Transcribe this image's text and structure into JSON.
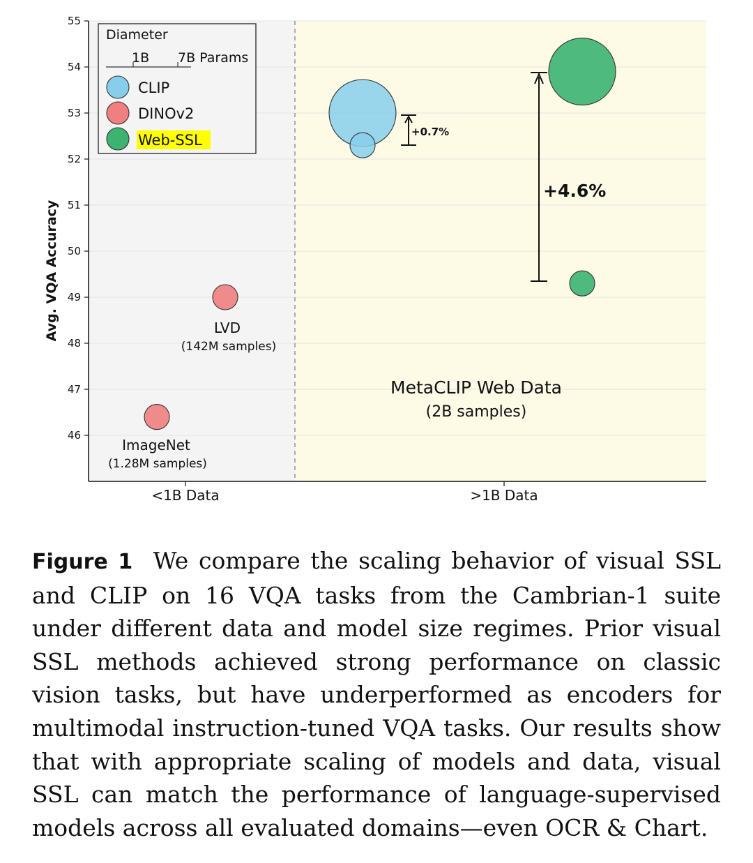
{
  "chart_data": {
    "type": "scatter",
    "ylabel": "Avg. VQA Accuracy",
    "ylim": [
      45,
      55
    ],
    "yticks": [
      "46",
      "47",
      "48",
      "49",
      "50",
      "51",
      "52",
      "53",
      "54",
      "55"
    ],
    "categories": [
      "<1B Data",
      ">1B Data"
    ],
    "grid": true,
    "legend": {
      "placement": "top-left",
      "title": "Diameter",
      "size_small": "1B",
      "size_large": "7B Params",
      "entries": [
        "CLIP",
        "DINOv2",
        "Web-SSL"
      ]
    },
    "series": [
      {
        "name": "CLIP",
        "color": "#87ceeb",
        "points": [
          {
            "region": ">1B Data",
            "params_B": 1,
            "y": 52.3
          },
          {
            "region": ">1B Data",
            "params_B": 7,
            "y": 53.0
          }
        ]
      },
      {
        "name": "DINOv2",
        "color": "#f08080",
        "points": [
          {
            "region": "<1B Data",
            "params_B": 1,
            "y": 46.4
          },
          {
            "region": "<1B Data",
            "params_B": 1,
            "y": 49.0
          }
        ]
      },
      {
        "name": "Web-SSL",
        "color": "#3cb371",
        "points": [
          {
            "region": ">1B Data",
            "params_B": 1,
            "y": 49.3
          },
          {
            "region": ">1B Data",
            "params_B": 7,
            "y": 53.9
          }
        ]
      }
    ],
    "annotations": {
      "clip_gain": "+0.7%",
      "webssl_gain": "+4.6%",
      "imagenet_name": "ImageNet",
      "imagenet_samples": "(1.28M samples)",
      "lvd_name": "LVD",
      "lvd_samples": "(142M samples)",
      "metaclip_name": "MetaCLIP Web Data",
      "metaclip_samples": "(2B samples)"
    },
    "colors": {
      "left_region_bg": "#f4f4f4",
      "right_region_bg": "#fdfbe6",
      "highlight": "#ffff00"
    }
  },
  "caption": {
    "label": "Figure 1",
    "text": "We compare the scaling behavior of visual SSL and CLIP on 16 VQA tasks from the Cambrian-1 suite under different data and model size regimes. Prior visual SSL methods achieved strong performance on classic vision tasks, but have underperformed as encoders for multimodal instruction-tuned VQA tasks. Our results show that with appropriate scaling of models and data, visual SSL can match the performance of language-supervised models across all evaluated domains—even OCR & Chart."
  }
}
